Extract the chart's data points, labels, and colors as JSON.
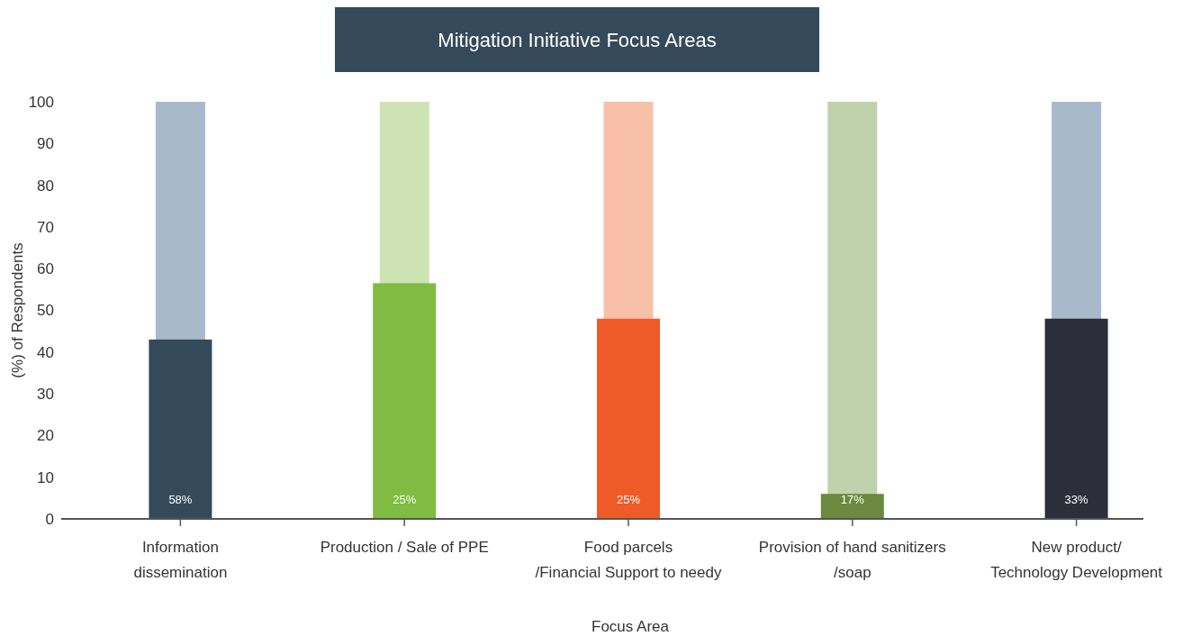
{
  "chart_data": {
    "type": "bar",
    "title": "Mitigation Initiative Focus Areas",
    "xlabel": "Focus Area",
    "ylabel": "(%) of Respondents",
    "categories": [
      "Information\ndissemination",
      "Production / Sale of PPE",
      "Food parcels\n/Financial Support to needy",
      "Provision of hand sanitizers\n/soap",
      "New product/\nTechnology Development"
    ],
    "series": [
      {
        "colors": [
          "#a9b9cc",
          "#cde3b3",
          "#f8bfa9",
          "#c0d2ac",
          "#a9b9cc"
        ],
        "values": [
          100,
          100,
          100,
          100,
          100
        ]
      },
      {
        "colors": [
          "#344a5a",
          "#7fbc41",
          "#ef5b27",
          "#6b8a3f",
          "#2c2f3a"
        ],
        "values": [
          43,
          56.5,
          48,
          6,
          48
        ]
      }
    ],
    "annotations": [
      "58%",
      "25%",
      "25%",
      "17%",
      "33%"
    ],
    "ylim": [
      0,
      100
    ],
    "yticks": [
      0,
      10,
      20,
      30,
      40,
      50,
      60,
      70,
      80,
      90,
      100
    ],
    "grid": false
  }
}
